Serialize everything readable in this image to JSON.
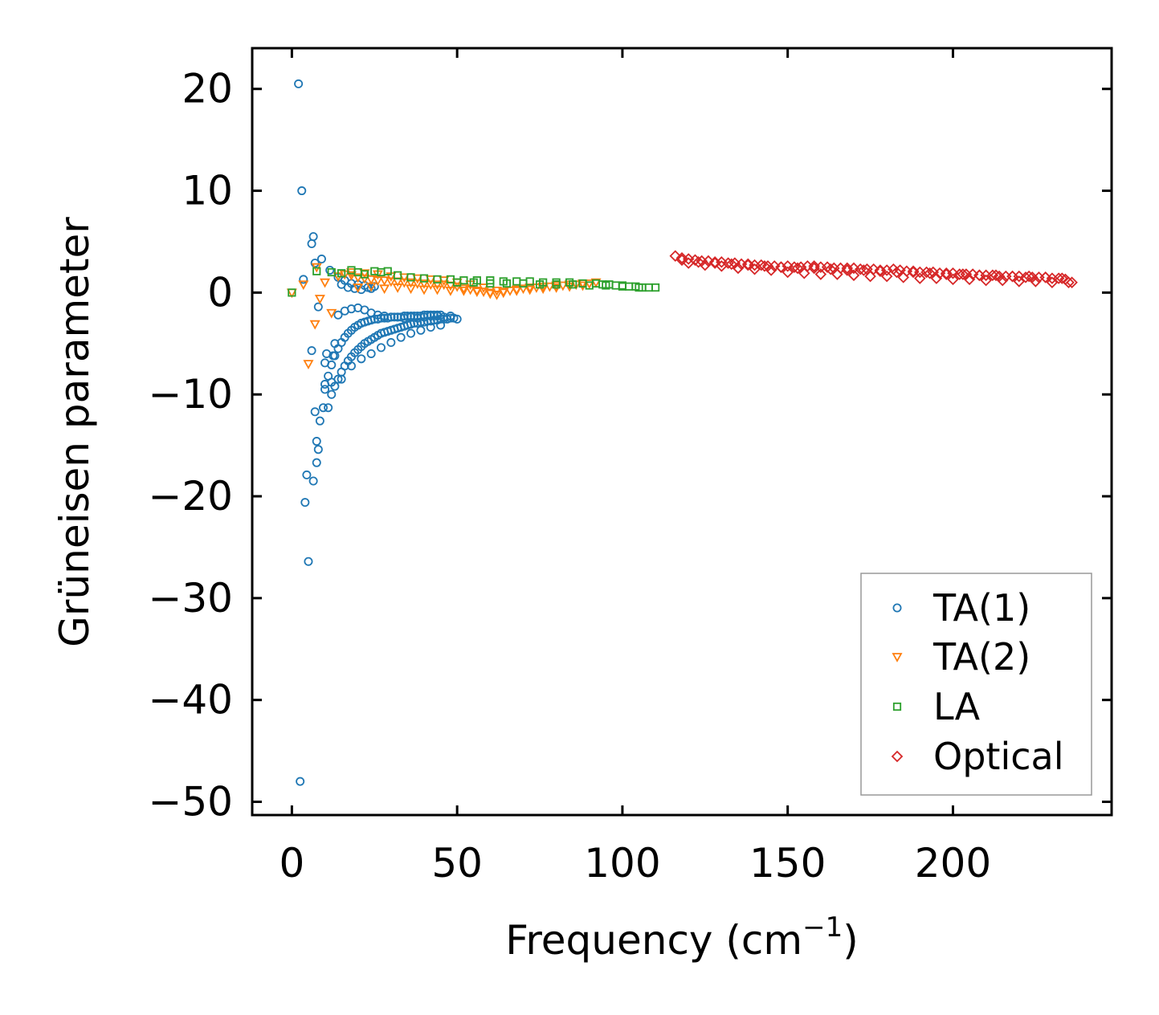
{
  "chart_data": {
    "type": "scatter",
    "title": "",
    "xlabel": "Frequency (cm",
    "xlabel_superscript": "−1",
    "xlabel_suffix": ")",
    "ylabel": "Grüneisen parameter",
    "xlim": [
      -12,
      248
    ],
    "ylim": [
      -51.3,
      24
    ],
    "xticks": [
      0,
      50,
      100,
      150,
      200
    ],
    "xtick_labels": [
      "0",
      "50",
      "100",
      "150",
      "200"
    ],
    "yticks": [
      20,
      10,
      0,
      -10,
      -20,
      -30,
      -40,
      -50
    ],
    "ytick_labels": [
      "20",
      "10",
      "0",
      "−10",
      "−20",
      "−30",
      "−40",
      "−50"
    ],
    "legend_position": "lower-right",
    "series": [
      {
        "name": "TA(1)",
        "marker": "circle",
        "color": "#1f77b4",
        "x": [
          2,
          2.5,
          3,
          3.5,
          4,
          4.5,
          5,
          6,
          6,
          6.5,
          6.5,
          7,
          7,
          7.5,
          7.5,
          8,
          8,
          8.5,
          9,
          9.5,
          10,
          10,
          10.5,
          11,
          11.5,
          12,
          12.5,
          13,
          14,
          15,
          16,
          17,
          18,
          19,
          20,
          21,
          22,
          23,
          24,
          25,
          14,
          16,
          18,
          20,
          22,
          24,
          26,
          28,
          30,
          32,
          34,
          36,
          38,
          40,
          42,
          44,
          46,
          48,
          50,
          15,
          18,
          21,
          24,
          27,
          30,
          33,
          36,
          39,
          42,
          45,
          12,
          13,
          14,
          15,
          16,
          17,
          18,
          19,
          20,
          21,
          22,
          23,
          24,
          25,
          26,
          27,
          28,
          29,
          30,
          31,
          32,
          33,
          34,
          35,
          36,
          37,
          38,
          39,
          40,
          41,
          42,
          43,
          44,
          45,
          46,
          47,
          48,
          49,
          10,
          11,
          12,
          13,
          14,
          15,
          16,
          17,
          18,
          19,
          20,
          21,
          22,
          23,
          24,
          25,
          26,
          27,
          28,
          29,
          30,
          31,
          32,
          33,
          34,
          35,
          36,
          37,
          38,
          39,
          40,
          41,
          42,
          43,
          44,
          45
        ],
        "y": [
          20.5,
          -48,
          10,
          1.3,
          -20.6,
          -17.9,
          -26.4,
          4.8,
          -5.7,
          5.5,
          -18.5,
          2.9,
          -11.7,
          -14.6,
          -16.7,
          -15.4,
          -1.4,
          -12.6,
          3.3,
          -11.3,
          -9,
          -6.9,
          -6,
          -11.3,
          2.2,
          -8.8,
          -6.2,
          -5,
          1.5,
          0.8,
          1.2,
          0.5,
          0.9,
          0.4,
          0.8,
          0.3,
          0.7,
          0.5,
          0.4,
          0.6,
          -2.2,
          -1.8,
          -1.6,
          -1.5,
          -1.7,
          -2.0,
          -2.2,
          -2.3,
          -2.4,
          -2.4,
          -2.5,
          -2.4,
          -2.5,
          -2.4,
          -2.3,
          -2.3,
          -2.4,
          -2.3,
          -2.6,
          -8.5,
          -7.2,
          -6.5,
          -6,
          -5.4,
          -4.9,
          -4.4,
          -4,
          -3.7,
          -3.4,
          -3.2,
          -10,
          -9.2,
          -8.5,
          -7.8,
          -7.2,
          -6.7,
          -6.3,
          -5.9,
          -5.6,
          -5.3,
          -5,
          -4.8,
          -4.6,
          -4.4,
          -4.2,
          -4.0,
          -3.9,
          -3.8,
          -3.7,
          -3.6,
          -3.5,
          -3.4,
          -3.3,
          -3.2,
          -3.1,
          -3.0,
          -3.0,
          -2.9,
          -2.9,
          -2.8,
          -2.8,
          -2.7,
          -2.7,
          -2.6,
          -2.6,
          -2.6,
          -2.5,
          -2.5,
          -9.5,
          -8.2,
          -7.1,
          -6.2,
          -5.5,
          -4.9,
          -4.4,
          -4.0,
          -3.7,
          -3.4,
          -3.2,
          -3.0,
          -2.9,
          -2.8,
          -2.7,
          -2.6,
          -2.6,
          -2.5,
          -2.5,
          -2.5,
          -2.4,
          -2.4,
          -2.4,
          -2.4,
          -2.3,
          -2.3,
          -2.3,
          -2.3,
          -2.3,
          -2.3,
          -2.2,
          -2.2,
          -2.2,
          -2.2,
          -2.2,
          -2.2
        ]
      },
      {
        "name": "TA(2)",
        "marker": "triangle-down",
        "color": "#ff7f0e",
        "x": [
          0,
          3.5,
          5,
          7,
          7.5,
          8.5,
          10,
          12,
          14,
          16,
          18,
          20,
          22,
          24,
          26,
          28,
          30,
          32,
          34,
          36,
          38,
          40,
          42,
          44,
          46,
          48,
          50,
          52,
          54,
          56,
          58,
          60,
          62,
          64,
          66,
          68,
          70,
          72,
          74,
          76,
          78,
          80,
          82,
          84,
          86,
          88,
          90,
          92,
          20,
          24,
          28,
          32,
          36,
          40,
          44,
          48,
          52,
          56,
          60,
          64,
          68,
          72,
          76,
          80,
          84,
          88,
          18,
          22,
          26,
          30,
          34,
          38,
          42,
          46,
          50,
          54,
          58,
          62
        ],
        "y": [
          0,
          0.8,
          -7,
          -3.1,
          2.5,
          -0.6,
          1.0,
          -2.0,
          1.6,
          1.8,
          1.7,
          1.5,
          1.4,
          1.3,
          1.2,
          1.2,
          1.1,
          1.1,
          1.0,
          1.0,
          0.9,
          0.9,
          0.8,
          0.8,
          0.8,
          0.7,
          0.6,
          0.4,
          0.3,
          0.2,
          0.1,
          0.0,
          -0.2,
          0.1,
          0.2,
          0.3,
          0.4,
          0.5,
          0.5,
          0.6,
          0.6,
          0.7,
          0.7,
          0.8,
          0.8,
          0.9,
          0.9,
          1.0,
          0.5,
          0.6,
          0.4,
          0.5,
          0.4,
          0.3,
          0.3,
          0.2,
          0.2,
          0.1,
          -0.1,
          0.0,
          0.2,
          0.3,
          0.4,
          0.5,
          0.6,
          0.7,
          2.0,
          1.9,
          1.8,
          1.6,
          1.5,
          1.4,
          1.3,
          1.2,
          1.0,
          0.8,
          0.5,
          0.2
        ]
      },
      {
        "name": "LA",
        "marker": "square",
        "color": "#2ca02c",
        "x": [
          0,
          7.5,
          12,
          15,
          18,
          20,
          22,
          25,
          27,
          29,
          32,
          36,
          40,
          44,
          48,
          52,
          56,
          60,
          64,
          68,
          72,
          76,
          80,
          84,
          88,
          92,
          94,
          96,
          98,
          100,
          102,
          104,
          106,
          108,
          110,
          50,
          55,
          60,
          65,
          70,
          75,
          80,
          85,
          90,
          95,
          100,
          105
        ],
        "y": [
          0,
          2.1,
          2.0,
          1.9,
          2.2,
          2.0,
          1.8,
          2.1,
          2.0,
          2.1,
          1.7,
          1.5,
          1.4,
          1.3,
          1.3,
          1.2,
          1.2,
          1.2,
          1.1,
          1.1,
          1.1,
          1.0,
          1.0,
          1.0,
          0.9,
          0.9,
          0.8,
          0.8,
          0.7,
          0.7,
          0.6,
          0.6,
          0.5,
          0.5,
          0.5,
          1.0,
          1.0,
          0.9,
          0.9,
          0.9,
          0.8,
          0.8,
          0.8,
          0.7,
          0.7,
          0.6,
          0.5
        ]
      },
      {
        "name": "Optical",
        "marker": "diamond",
        "color": "#d62728",
        "x": [
          116,
          118,
          120,
          122,
          124,
          126,
          128,
          130,
          132,
          134,
          136,
          138,
          140,
          142,
          144,
          146,
          148,
          150,
          152,
          154,
          156,
          158,
          160,
          162,
          164,
          166,
          168,
          170,
          172,
          174,
          176,
          178,
          180,
          182,
          184,
          186,
          188,
          190,
          192,
          194,
          196,
          198,
          200,
          202,
          204,
          206,
          208,
          210,
          212,
          214,
          216,
          218,
          220,
          222,
          224,
          226,
          228,
          230,
          232,
          234,
          236,
          120,
          125,
          130,
          135,
          140,
          145,
          150,
          155,
          160,
          165,
          170,
          175,
          180,
          185,
          190,
          195,
          200,
          205,
          210,
          215,
          220,
          225,
          230,
          235,
          118,
          123,
          128,
          133,
          138,
          143,
          148,
          153,
          158,
          163,
          168,
          173,
          178,
          183,
          188,
          193,
          198,
          203,
          208,
          213,
          218,
          223,
          228,
          233
        ],
        "y": [
          3.6,
          3.4,
          3.3,
          3.2,
          3.1,
          3.1,
          3.0,
          3.0,
          2.9,
          2.9,
          2.8,
          2.8,
          2.7,
          2.7,
          2.6,
          2.6,
          2.5,
          2.6,
          2.5,
          2.5,
          2.6,
          2.6,
          2.5,
          2.5,
          2.4,
          2.4,
          2.4,
          2.4,
          2.3,
          2.3,
          2.3,
          2.2,
          2.2,
          2.3,
          2.2,
          2.1,
          2.1,
          2.0,
          2.0,
          2.0,
          1.9,
          1.9,
          1.9,
          1.8,
          1.8,
          1.8,
          1.7,
          1.7,
          1.7,
          1.6,
          1.6,
          1.6,
          1.6,
          1.5,
          1.5,
          1.5,
          1.5,
          1.4,
          1.4,
          1.3,
          1.0,
          2.9,
          2.7,
          2.6,
          2.4,
          2.3,
          2.2,
          2.0,
          1.9,
          1.8,
          1.8,
          1.7,
          1.6,
          1.6,
          1.5,
          1.4,
          1.4,
          1.3,
          1.3,
          1.2,
          1.2,
          1.1,
          1.1,
          1.0,
          1.0,
          3.2,
          3.0,
          2.9,
          2.8,
          2.7,
          2.6,
          2.5,
          2.4,
          2.4,
          2.3,
          2.2,
          2.2,
          2.1,
          2.0,
          2.0,
          1.9,
          1.8,
          1.8,
          1.7,
          1.7,
          1.6,
          1.6,
          1.5,
          1.4
        ]
      }
    ]
  }
}
